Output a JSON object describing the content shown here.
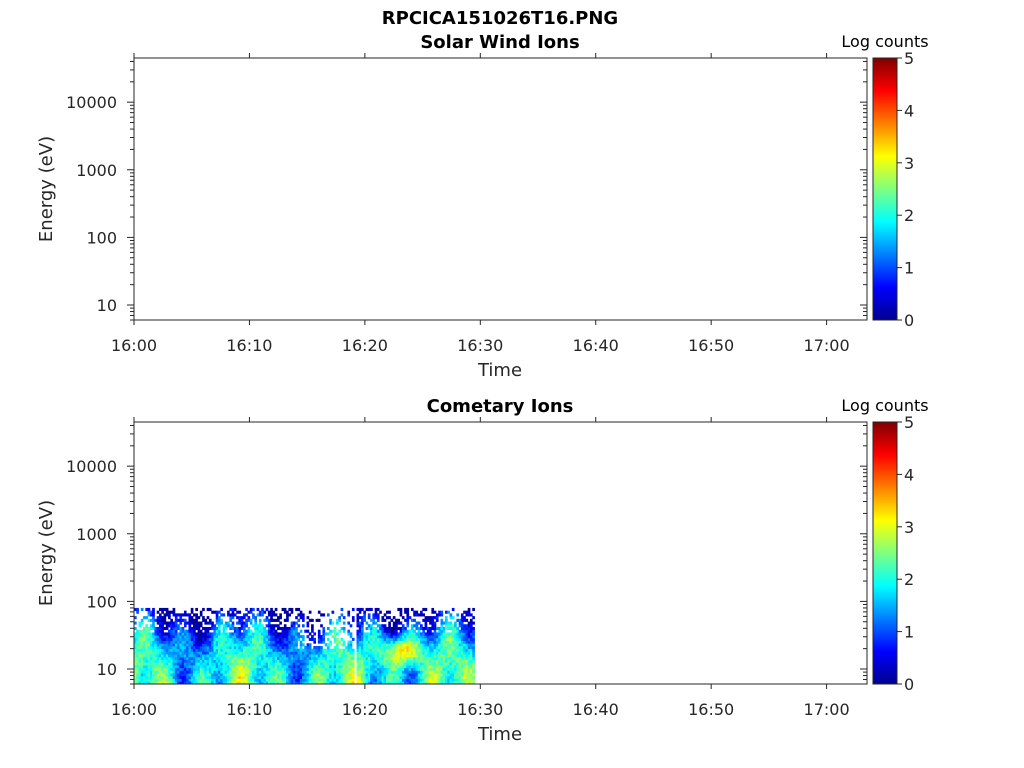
{
  "figure": {
    "file_title": "RPCICA151026T16.PNG"
  },
  "colors": {
    "axis": "#262626",
    "background": "#ffffff",
    "colormap": "jet"
  },
  "chart_data": [
    {
      "type": "heatmap",
      "title": "Solar Wind Ions",
      "xlabel": "Time",
      "ylabel": "Energy (eV)",
      "x_ticks": [
        "16:00",
        "16:10",
        "16:20",
        "16:30",
        "16:40",
        "16:50",
        "17:00"
      ],
      "x_tick_minutes": [
        0,
        10,
        20,
        30,
        40,
        50,
        60
      ],
      "xlim_minutes": [
        0,
        63.5
      ],
      "y_scale": "log",
      "y_ticks": [
        "10",
        "100",
        "1000",
        "10000"
      ],
      "y_tick_values": [
        10,
        100,
        1000,
        10000
      ],
      "ylim": [
        6,
        45000
      ],
      "colorbar": {
        "label": "Log counts",
        "ticks": [
          "0",
          "1",
          "2",
          "3",
          "4",
          "5"
        ],
        "range": [
          0,
          5
        ]
      },
      "data_present": false
    },
    {
      "type": "heatmap",
      "title": "Cometary Ions",
      "xlabel": "Time",
      "ylabel": "Energy (eV)",
      "x_ticks": [
        "16:00",
        "16:10",
        "16:20",
        "16:30",
        "16:40",
        "16:50",
        "17:00"
      ],
      "x_tick_minutes": [
        0,
        10,
        20,
        30,
        40,
        50,
        60
      ],
      "xlim_minutes": [
        0,
        63.5
      ],
      "y_scale": "log",
      "y_ticks": [
        "10",
        "100",
        "1000",
        "10000"
      ],
      "y_tick_values": [
        10,
        100,
        1000,
        10000
      ],
      "ylim": [
        6,
        45000
      ],
      "colorbar": {
        "label": "Log counts",
        "ticks": [
          "0",
          "1",
          "2",
          "3",
          "4",
          "5"
        ],
        "range": [
          0,
          5
        ]
      },
      "data_present": true,
      "data_time_range": [
        "16:00",
        "16:29"
      ],
      "data_energy_range_eV": [
        6,
        80
      ],
      "data_gaps_minutes": [
        [
          18.9,
          19.1
        ]
      ],
      "typical_level": 2,
      "peak_level": 4,
      "peak_near": {
        "time": "16:23",
        "energy_eV": 18
      }
    }
  ]
}
